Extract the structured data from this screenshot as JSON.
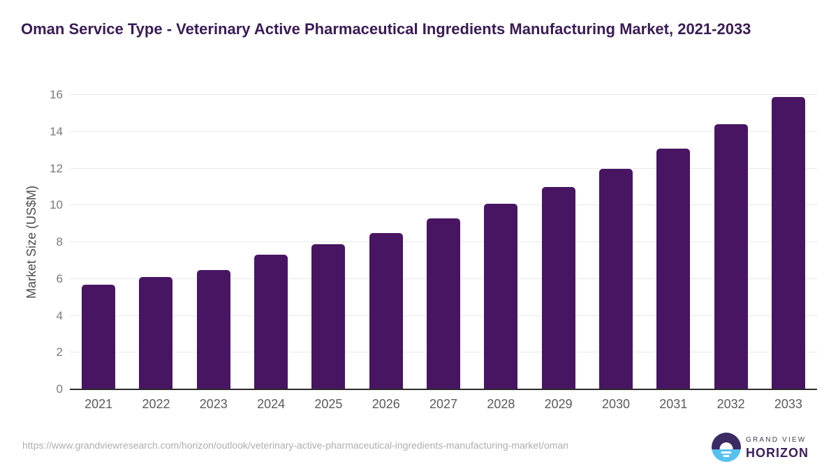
{
  "title": {
    "text": "Oman Service Type - Veterinary Active Pharmaceutical Ingredients Manufacturing Market, 2021-2033"
  },
  "chart_data": {
    "type": "bar",
    "categories": [
      "2021",
      "2022",
      "2023",
      "2024",
      "2025",
      "2026",
      "2027",
      "2028",
      "2029",
      "2030",
      "2031",
      "2032",
      "2033"
    ],
    "values": [
      5.7,
      6.1,
      6.5,
      7.3,
      7.9,
      8.5,
      9.3,
      10.1,
      11.0,
      12.0,
      13.1,
      14.4,
      15.9
    ],
    "title": "Oman Service Type - Veterinary Active Pharmaceutical Ingredients Manufacturing Market, 2021-2033",
    "xlabel": "",
    "ylabel": "Market Size (US$M)",
    "ylim": [
      0,
      16
    ],
    "yticks": [
      0,
      2,
      4,
      6,
      8,
      10,
      12,
      14,
      16
    ],
    "grid": "horizontal",
    "legend_position": "none",
    "bar_color": "#481563"
  },
  "colors": {
    "title_text": "#3a1b55",
    "bar": "#481563",
    "axis_line": "#2b2b2b",
    "gridline": "#e8e8e8",
    "y_tick_labels": "#7a7a7a",
    "x_tick_labels": "#5a5a5a",
    "y_axis_title": "#4d4d4d",
    "url_text": "#aeaeae",
    "logo_circle_top": "#3b2a63",
    "logo_circle_bottom": "#56c1ee",
    "logo_grand_view_text": "#3f3f52",
    "logo_horizon_text": "#3a1e5c"
  },
  "footer": {
    "source_url": "https://www.grandviewresearch.com/horizon/outlook/veterinary-active-pharmaceutical-ingredients-manufacturing-market/oman"
  },
  "logo": {
    "line1": "GRAND VIEW",
    "line2": "HORIZON",
    "icon": "horizon-sun-circle-icon"
  }
}
